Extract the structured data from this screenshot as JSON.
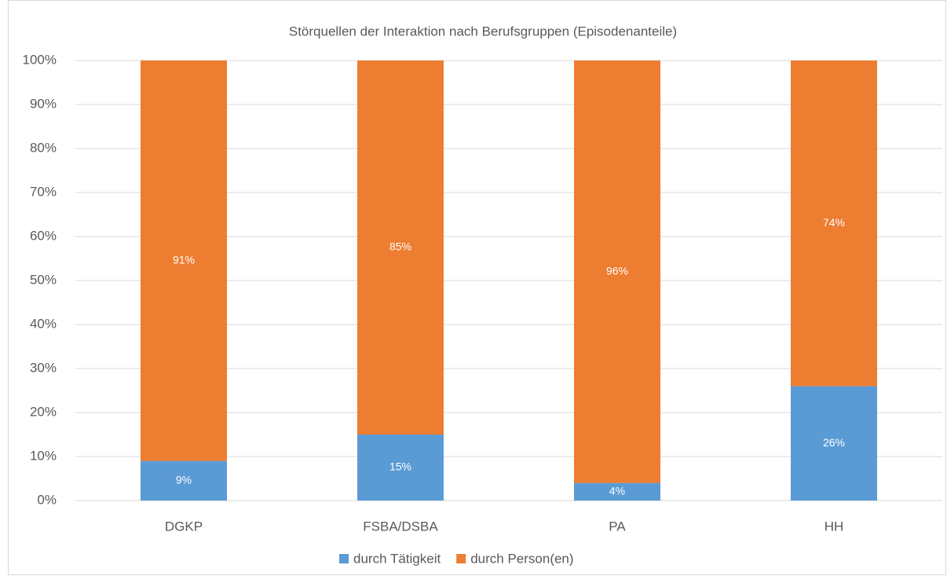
{
  "chart_data": {
    "type": "stacked_bar",
    "title": "Störquellen der Interaktion nach Berufsgruppen (Episodenanteile)",
    "categories": [
      "DGKP",
      "FSBA/DSBA",
      "PA",
      "HH"
    ],
    "series": [
      {
        "name": "durch Tätigkeit",
        "color": "#5b9bd5",
        "values": [
          9,
          15,
          4,
          26
        ],
        "value_labels": [
          "9%",
          "15%",
          "4%",
          "26%"
        ]
      },
      {
        "name": "durch Person(en)",
        "color": "#ed7d31",
        "values": [
          91,
          85,
          96,
          74
        ],
        "value_labels": [
          "91%",
          "85%",
          "96%",
          "74%"
        ]
      }
    ],
    "ylim": [
      0,
      100
    ],
    "yticks": [
      {
        "value": 0,
        "label": "0%"
      },
      {
        "value": 10,
        "label": "10%"
      },
      {
        "value": 20,
        "label": "20%"
      },
      {
        "value": 30,
        "label": "30%"
      },
      {
        "value": 40,
        "label": "40%"
      },
      {
        "value": 50,
        "label": "50%"
      },
      {
        "value": 60,
        "label": "60%"
      },
      {
        "value": 70,
        "label": "70%"
      },
      {
        "value": 80,
        "label": "80%"
      },
      {
        "value": 90,
        "label": "90%"
      },
      {
        "value": 100,
        "label": "100%"
      }
    ],
    "grid": true,
    "legend": "bottom"
  }
}
